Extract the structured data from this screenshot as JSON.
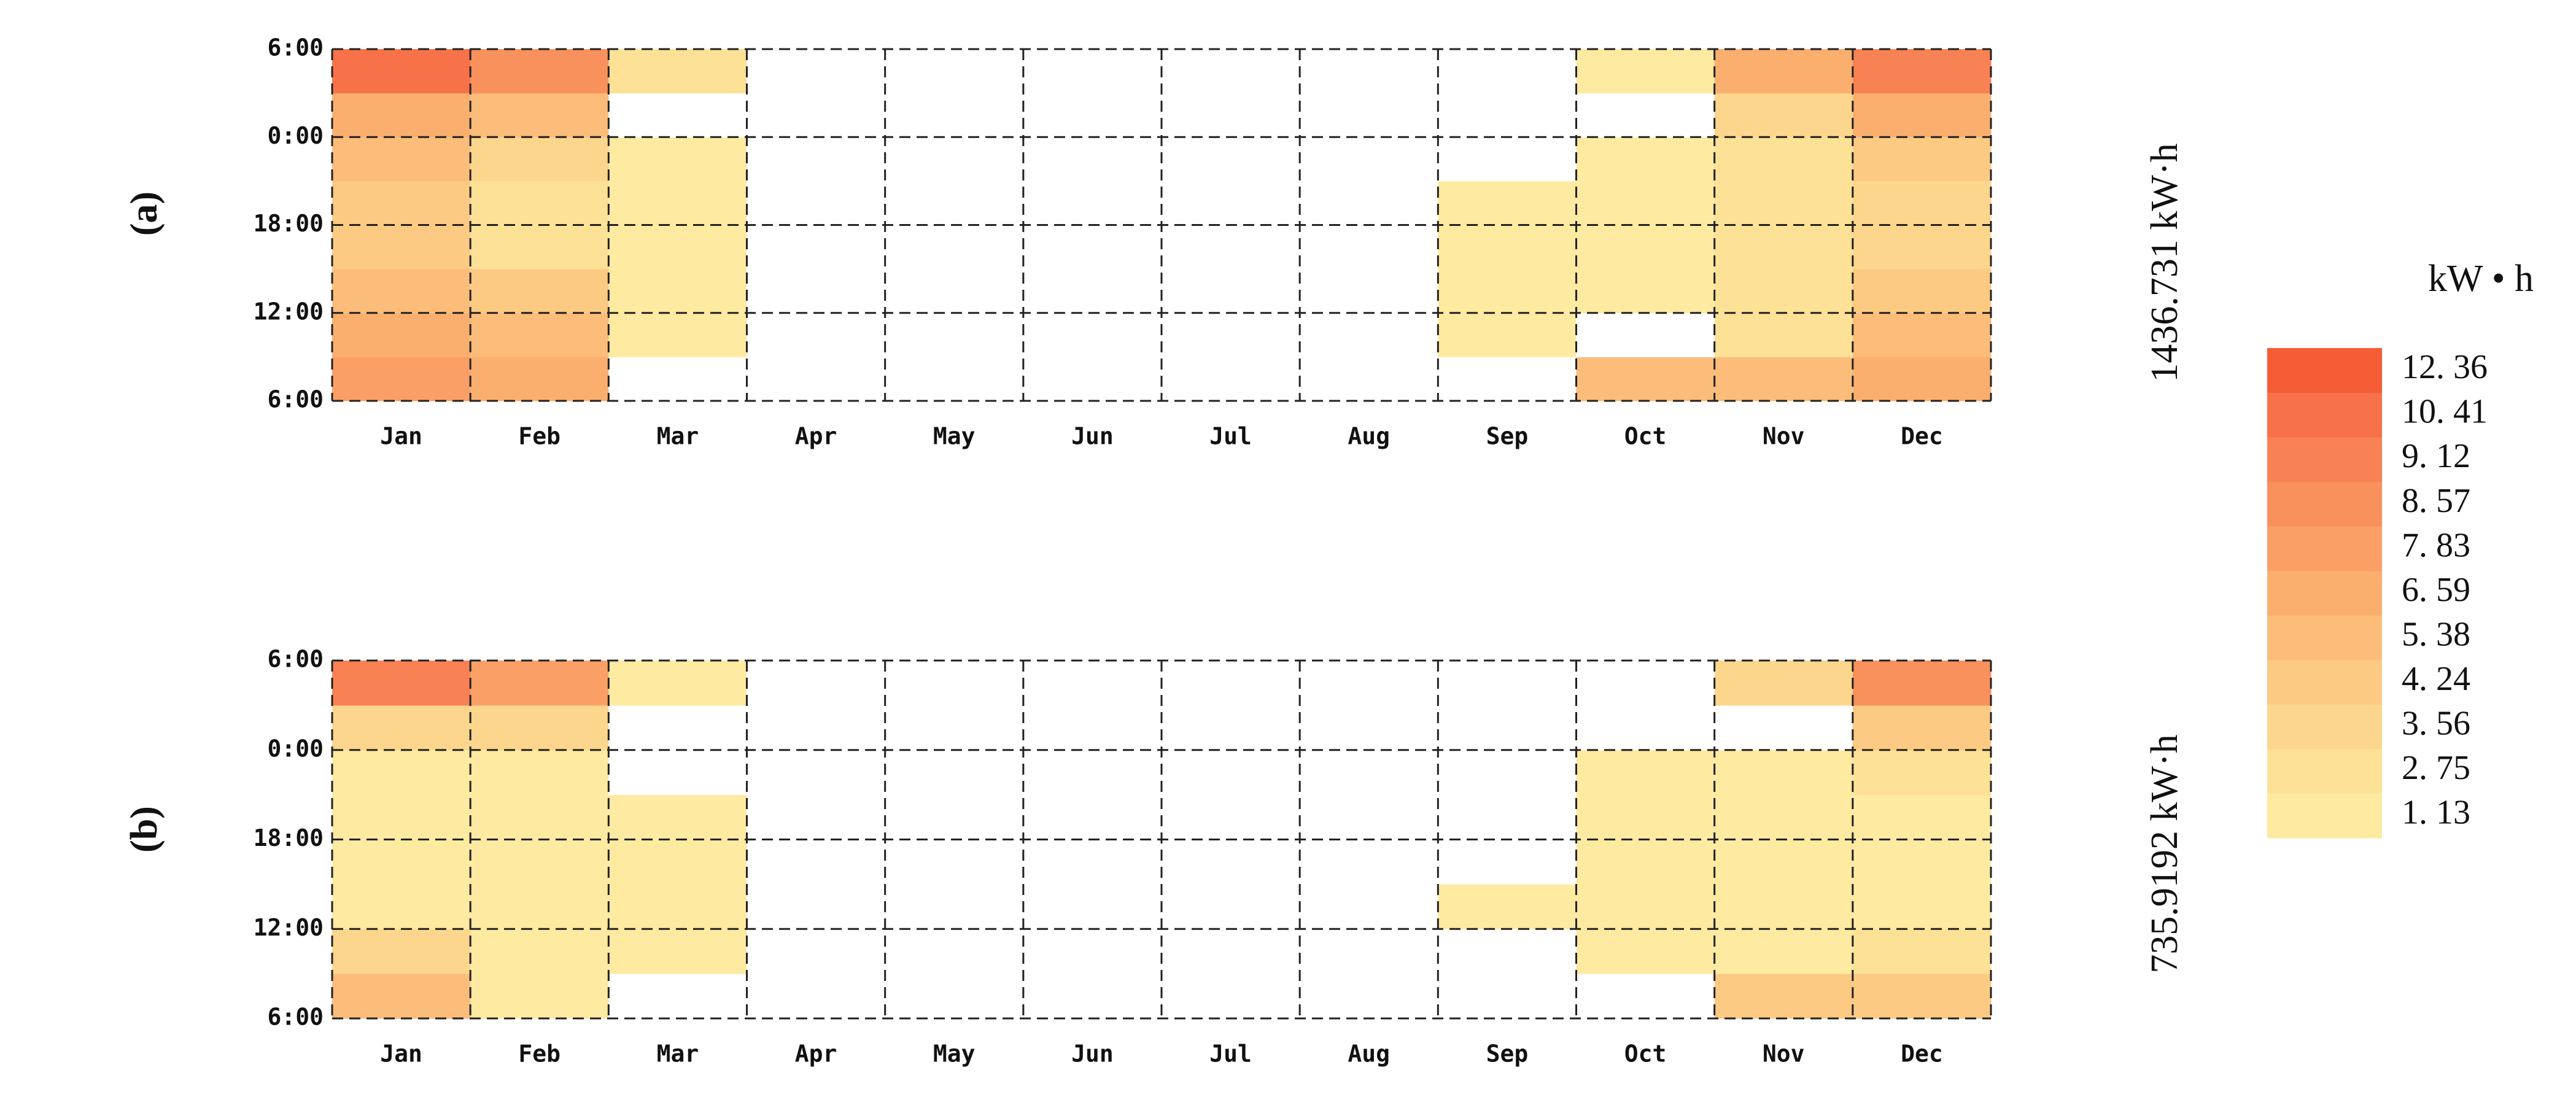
{
  "chart_data": [
    {
      "type": "heatmap",
      "panel_label": "(a)",
      "total_label": "1436.731 kW·h",
      "categories": [
        "Jan",
        "Feb",
        "Mar",
        "Apr",
        "May",
        "Jun",
        "Jul",
        "Aug",
        "Sep",
        "Oct",
        "Nov",
        "Dec"
      ],
      "y_bins": [
        6,
        9,
        12,
        15,
        18,
        21,
        24,
        27,
        30
      ],
      "values": [
        [
          7.83,
          6.59,
          0,
          0,
          0,
          0,
          0,
          0,
          0,
          5.38,
          5.38,
          6.59
        ],
        [
          6.59,
          5.38,
          1.13,
          0,
          0,
          0,
          0,
          0,
          1.13,
          0,
          2.75,
          5.38
        ],
        [
          5.38,
          4.24,
          1.13,
          0,
          0,
          0,
          0,
          0,
          1.13,
          1.13,
          2.75,
          4.24
        ],
        [
          4.24,
          2.75,
          1.13,
          0,
          0,
          0,
          0,
          0,
          1.13,
          1.13,
          2.75,
          3.56
        ],
        [
          4.24,
          2.75,
          1.13,
          0,
          0,
          0,
          0,
          0,
          1.13,
          1.13,
          2.75,
          3.56
        ],
        [
          5.38,
          3.56,
          1.13,
          0,
          0,
          0,
          0,
          0,
          0,
          1.13,
          2.75,
          4.24
        ],
        [
          6.59,
          5.38,
          0,
          0,
          0,
          0,
          0,
          0,
          0,
          0,
          3.56,
          6.59
        ],
        [
          10.41,
          8.57,
          2.75,
          0,
          0,
          0,
          0,
          0,
          0,
          1.13,
          6.59,
          9.12
        ]
      ],
      "ylim": [
        6,
        30
      ],
      "yticks": [
        {
          "value": 6,
          "label": "6:00"
        },
        {
          "value": 12,
          "label": "12:00"
        },
        {
          "value": 18,
          "label": "18:00"
        },
        {
          "value": 24,
          "label": "0:00"
        },
        {
          "value": 30,
          "label": "6:00"
        }
      ],
      "grid": true,
      "colorbar": {
        "title": "kW • h",
        "levels": [
          {
            "value": 1.13,
            "label": "1. 13"
          },
          {
            "value": 2.75,
            "label": "2. 75"
          },
          {
            "value": 3.56,
            "label": "3. 56"
          },
          {
            "value": 4.24,
            "label": "4. 24"
          },
          {
            "value": 5.38,
            "label": "5. 38"
          },
          {
            "value": 6.59,
            "label": "6. 59"
          },
          {
            "value": 7.83,
            "label": "7. 83"
          },
          {
            "value": 8.57,
            "label": "8. 57"
          },
          {
            "value": 9.12,
            "label": "9. 12"
          },
          {
            "value": 10.41,
            "label": "10. 41"
          },
          {
            "value": 12.36,
            "label": "12. 36"
          }
        ],
        "colors": [
          "#feeaa0",
          "#fde196",
          "#fcd68c",
          "#fcca83",
          "#fbbd79",
          "#fbaf6f",
          "#faa066",
          "#f9915c",
          "#f88253",
          "#f77249",
          "#f65d36"
        ]
      }
    },
    {
      "type": "heatmap",
      "panel_label": "(b)",
      "total_label": "735.9192 kW·h",
      "categories": [
        "Jan",
        "Feb",
        "Mar",
        "Apr",
        "May",
        "Jun",
        "Jul",
        "Aug",
        "Sep",
        "Oct",
        "Nov",
        "Dec"
      ],
      "y_bins": [
        6,
        9,
        12,
        15,
        18,
        21,
        24,
        27,
        30
      ],
      "values": [
        [
          5.38,
          1.13,
          0,
          0,
          0,
          0,
          0,
          0,
          0,
          0,
          4.24,
          4.24
        ],
        [
          3.56,
          1.13,
          1.13,
          0,
          0,
          0,
          0,
          0,
          0,
          1.13,
          1.13,
          2.75
        ],
        [
          1.13,
          1.13,
          1.13,
          0,
          0,
          0,
          0,
          0,
          1.13,
          1.13,
          1.13,
          1.13
        ],
        [
          1.13,
          1.13,
          1.13,
          0,
          0,
          0,
          0,
          0,
          0,
          1.13,
          1.13,
          1.13
        ],
        [
          1.13,
          1.13,
          1.13,
          0,
          0,
          0,
          0,
          0,
          0,
          1.13,
          1.13,
          1.13
        ],
        [
          1.13,
          1.13,
          0,
          0,
          0,
          0,
          0,
          0,
          0,
          1.13,
          1.13,
          2.75
        ],
        [
          3.56,
          3.56,
          0,
          0,
          0,
          0,
          0,
          0,
          0,
          0,
          0,
          4.24
        ],
        [
          9.12,
          7.83,
          1.13,
          0,
          0,
          0,
          0,
          0,
          0,
          0,
          3.56,
          8.57
        ]
      ],
      "ylim": [
        6,
        30
      ],
      "yticks": [
        {
          "value": 6,
          "label": "6:00"
        },
        {
          "value": 12,
          "label": "12:00"
        },
        {
          "value": 18,
          "label": "18:00"
        },
        {
          "value": 24,
          "label": "0:00"
        },
        {
          "value": 30,
          "label": "6:00"
        }
      ],
      "grid": true
    }
  ]
}
